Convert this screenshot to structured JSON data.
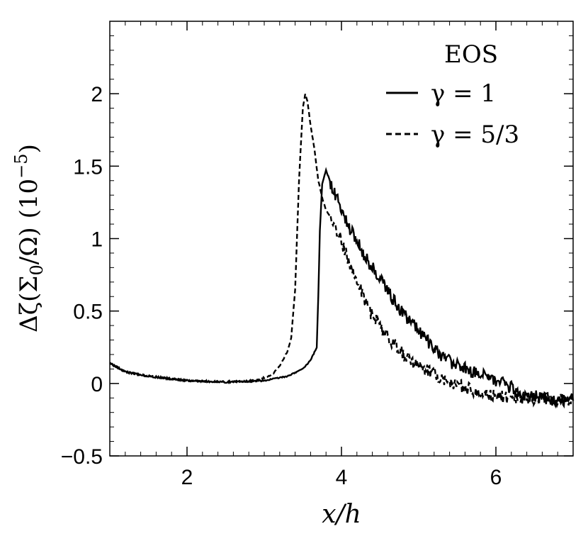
{
  "chart_data": {
    "type": "line",
    "title": "",
    "xlabel": "x/h",
    "ylabel": "Δζ(Σ0/Ω) (10^-5)",
    "ylabel_parts": {
      "delta_zeta": "Δζ(Σ",
      "sub": "0",
      "omega": "/Ω)",
      "unit": "(10",
      "exp": "−5",
      "close": ")"
    },
    "xlim": [
      1.0,
      7.0
    ],
    "ylim": [
      -0.5,
      2.5
    ],
    "xticks": [
      2,
      4,
      6
    ],
    "xtick_labels": [
      "2",
      "4",
      "6"
    ],
    "yticks": [
      -0.5,
      0,
      0.5,
      1,
      1.5,
      2
    ],
    "ytick_labels": [
      "−0.5",
      "0",
      "0.5",
      "1",
      "1.5",
      "2"
    ],
    "legend": {
      "title": "EOS",
      "position": "top-right"
    },
    "series": [
      {
        "name": "γ = 1",
        "style": "solid",
        "x": [
          1.0,
          1.2,
          1.5,
          2.0,
          2.5,
          3.0,
          3.3,
          3.5,
          3.6,
          3.68,
          3.7,
          3.72,
          3.75,
          3.8,
          3.85,
          3.9,
          4.0,
          4.1,
          4.2,
          4.3,
          4.4,
          4.5,
          4.6,
          4.7,
          4.8,
          4.9,
          5.0,
          5.2,
          5.4,
          5.6,
          5.8,
          6.0,
          6.2,
          6.4,
          6.6,
          6.8,
          7.0
        ],
        "y": [
          0.14,
          0.08,
          0.05,
          0.02,
          0.01,
          0.02,
          0.05,
          0.1,
          0.16,
          0.25,
          0.6,
          1.05,
          1.38,
          1.47,
          1.4,
          1.32,
          1.2,
          1.08,
          0.98,
          0.88,
          0.8,
          0.72,
          0.64,
          0.56,
          0.48,
          0.42,
          0.36,
          0.24,
          0.15,
          0.1,
          0.06,
          0.02,
          -0.03,
          -0.08,
          -0.1,
          -0.11,
          -0.12
        ]
      },
      {
        "name": "γ = 5/3",
        "style": "dashed",
        "x": [
          1.0,
          1.2,
          1.5,
          2.0,
          2.5,
          2.9,
          3.1,
          3.2,
          3.3,
          3.35,
          3.4,
          3.45,
          3.5,
          3.53,
          3.56,
          3.6,
          3.65,
          3.7,
          3.75,
          3.8,
          3.9,
          4.0,
          4.1,
          4.2,
          4.3,
          4.4,
          4.5,
          4.6,
          4.7,
          4.8,
          5.0,
          5.2,
          5.4,
          5.6,
          5.8,
          6.0,
          6.2,
          6.4,
          6.6,
          6.8,
          7.0
        ],
        "y": [
          0.14,
          0.08,
          0.05,
          0.02,
          0.01,
          0.02,
          0.06,
          0.12,
          0.22,
          0.32,
          0.65,
          1.4,
          1.9,
          2.0,
          1.95,
          1.78,
          1.62,
          1.4,
          1.28,
          1.2,
          1.1,
          0.98,
          0.84,
          0.72,
          0.58,
          0.46,
          0.4,
          0.32,
          0.26,
          0.2,
          0.12,
          0.06,
          0.01,
          -0.03,
          -0.07,
          -0.09,
          -0.1,
          -0.1,
          -0.11,
          -0.11,
          -0.12
        ]
      }
    ]
  }
}
